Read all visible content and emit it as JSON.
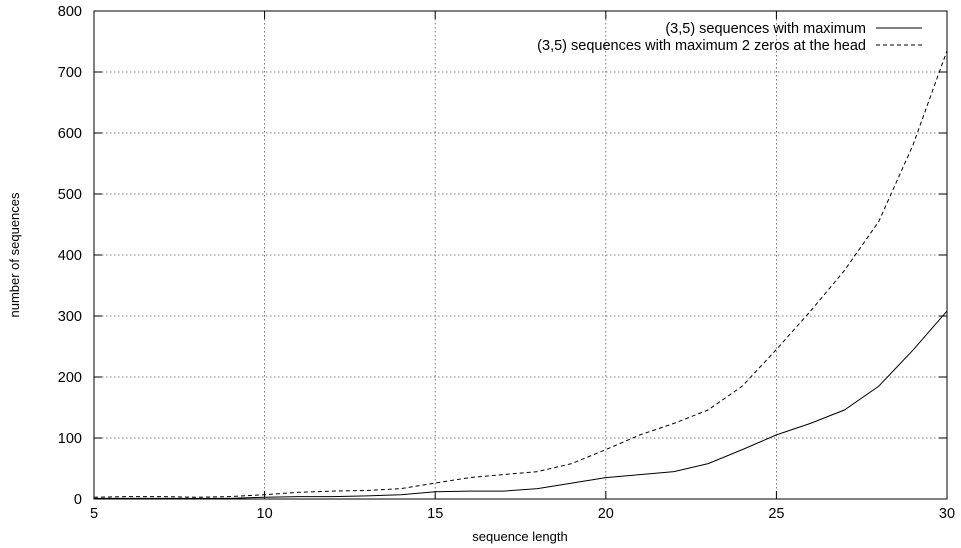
{
  "chart_data": {
    "type": "line",
    "title": "",
    "xlabel": "sequence length",
    "ylabel": "number of sequences",
    "xlim": [
      5,
      30
    ],
    "ylim": [
      0,
      800
    ],
    "xticks": [
      5,
      10,
      15,
      20,
      25,
      30
    ],
    "yticks": [
      0,
      100,
      200,
      300,
      400,
      500,
      600,
      700,
      800
    ],
    "grid": true,
    "legend_position": "top-right",
    "x": [
      5,
      6,
      7,
      8,
      9,
      10,
      11,
      12,
      13,
      14,
      15,
      16,
      17,
      18,
      19,
      20,
      21,
      22,
      23,
      24,
      25,
      26,
      27,
      28,
      29,
      30
    ],
    "series": [
      {
        "name": "(3,5) sequences with maximum",
        "style": "solid",
        "values": [
          1,
          1,
          1,
          1,
          1,
          3,
          4,
          4,
          5,
          7,
          12,
          13,
          13,
          17,
          26,
          35,
          40,
          45,
          58,
          81,
          105,
          124,
          146,
          185,
          244,
          308
        ]
      },
      {
        "name": "(3,5) sequences with maximum 2 zeros at the head",
        "style": "dashed",
        "values": [
          3,
          4,
          4,
          3,
          4,
          7,
          11,
          13,
          14,
          17,
          26,
          35,
          40,
          45,
          58,
          81,
          105,
          124,
          146,
          185,
          245,
          308,
          375,
          455,
          580,
          735
        ]
      }
    ]
  }
}
